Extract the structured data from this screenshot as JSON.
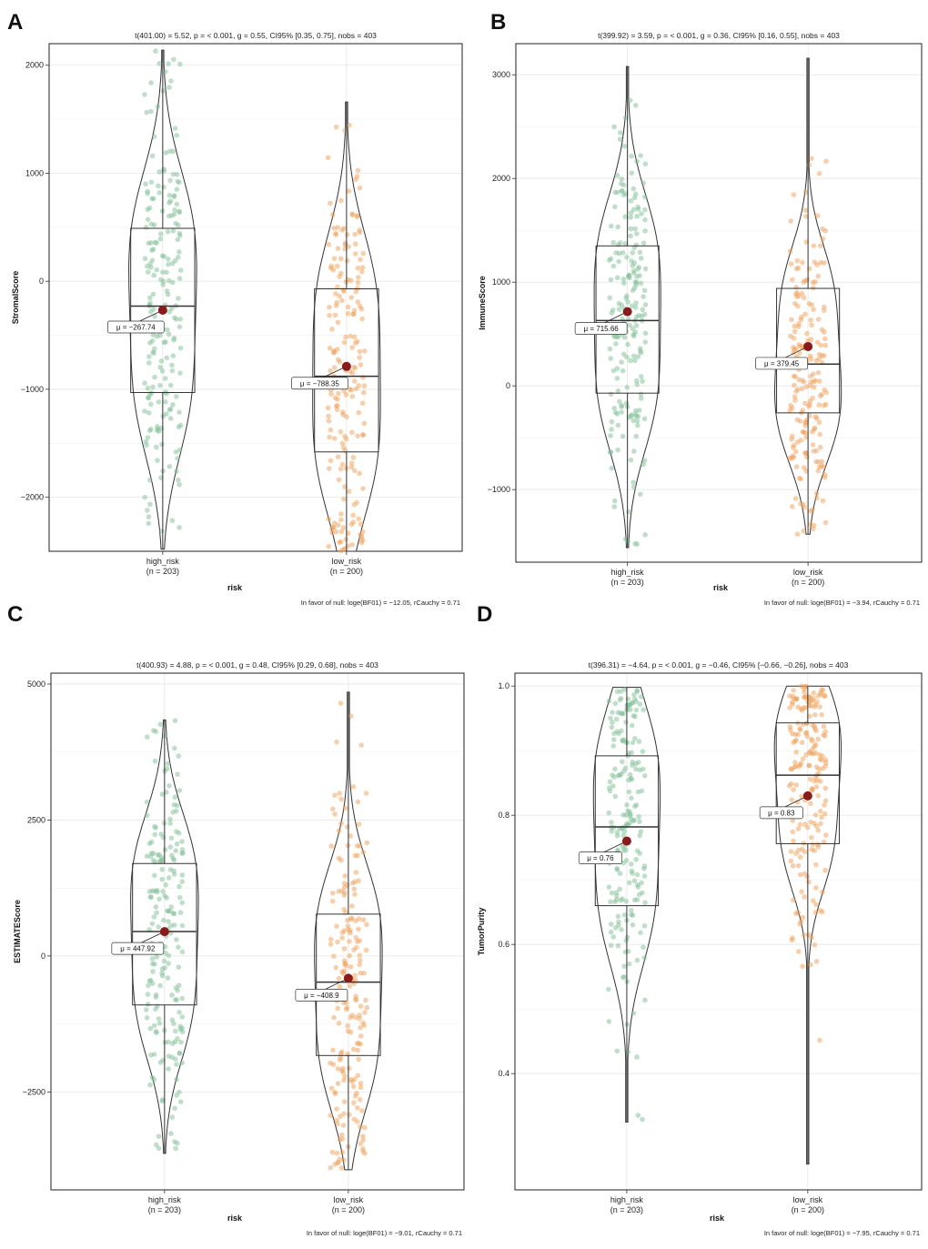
{
  "figure": {
    "colors": {
      "high_risk": "#7fbf95",
      "low_risk": "#f0a058",
      "mean_dot": "#8b1a1a",
      "outline": "#333333",
      "grid": "#e6e6e6",
      "frame": "#222222"
    }
  },
  "chart_data": [
    {
      "panel_label": "A",
      "type": "violin-box-scatter",
      "title": "t(401.00) = 5.52, p = < 0.001, g = 0.55, CI95% [0.35, 0.75], nobs = 403",
      "xlabel": "risk",
      "ylabel": "StromalScore",
      "ylim": [
        -2500,
        2200
      ],
      "yticks": [
        -2000,
        -1000,
        0,
        1000,
        2000
      ],
      "ytick_labels": [
        "−2000",
        "−1000",
        "0",
        "1000",
        "2000"
      ],
      "footer": "In favor of null: loge(BF01) = −12.05, rCauchy = 0.71",
      "categories": [
        "high_risk",
        "low_risk"
      ],
      "category_labels": [
        "high_risk",
        "low_risk"
      ],
      "counts": [
        "(n = 203)",
        "(n = 200)"
      ],
      "groups": [
        {
          "name": "high_risk",
          "n": 203,
          "min": -2480,
          "q1": -1030,
          "median": -230,
          "q3": 490,
          "max": 2140,
          "mean": -267.74,
          "mean_label": "μ = −267.74"
        },
        {
          "name": "low_risk",
          "n": 200,
          "min": -2500,
          "q1": -1580,
          "median": -880,
          "q3": -70,
          "max": 1660,
          "mean": -788.35,
          "mean_label": "μ = −788.35"
        }
      ]
    },
    {
      "panel_label": "B",
      "type": "violin-box-scatter",
      "title": "t(399.92) = 3.59, p = < 0.001, g = 0.36, CI95% [0.16, 0.55], nobs = 403",
      "xlabel": "risk",
      "ylabel": "ImmuneScore",
      "ylim": [
        -1700,
        3300
      ],
      "yticks": [
        -1000,
        0,
        1000,
        2000,
        3000
      ],
      "ytick_labels": [
        "−1000",
        "0",
        "1000",
        "2000",
        "3000"
      ],
      "footer": "In favor of null: loge(BF01) = −3.94, rCauchy = 0.71",
      "categories": [
        "high_risk",
        "low_risk"
      ],
      "category_labels": [
        "high_risk",
        "low_risk"
      ],
      "counts": [
        "(n = 203)",
        "(n = 200)"
      ],
      "groups": [
        {
          "name": "high_risk",
          "n": 203,
          "min": -1560,
          "q1": -70,
          "median": 630,
          "q3": 1350,
          "max": 3080,
          "mean": 715.66,
          "mean_label": "μ = 715.66"
        },
        {
          "name": "low_risk",
          "n": 200,
          "min": -1430,
          "q1": -260,
          "median": 210,
          "q3": 940,
          "max": 3160,
          "mean": 379.45,
          "mean_label": "μ = 379.45"
        }
      ]
    },
    {
      "panel_label": "C",
      "type": "violin-box-scatter",
      "title": "t(400.93) = 4.88, p = < 0.001, g = 0.48, CI95% [0.29, 0.68], nobs = 403",
      "xlabel": "risk",
      "ylabel": "ESTIMATEScore",
      "ylim": [
        -4300,
        5200
      ],
      "yticks": [
        -2500,
        0,
        2500,
        5000
      ],
      "ytick_labels": [
        "−2500",
        "0",
        "2500",
        "5000"
      ],
      "footer": "In favor of null: loge(BF01) = −9.01, rCauchy = 0.71",
      "categories": [
        "high_risk",
        "low_risk"
      ],
      "category_labels": [
        "high_risk",
        "low_risk"
      ],
      "counts": [
        "(n = 203)",
        "(n = 200)"
      ],
      "groups": [
        {
          "name": "high_risk",
          "n": 203,
          "min": -3630,
          "q1": -900,
          "median": 450,
          "q3": 1700,
          "max": 4340,
          "mean": 447.92,
          "mean_label": "μ = 447.92"
        },
        {
          "name": "low_risk",
          "n": 200,
          "min": -3930,
          "q1": -1830,
          "median": -480,
          "q3": 770,
          "max": 4850,
          "mean": -408.9,
          "mean_label": "μ = −408.9"
        }
      ]
    },
    {
      "panel_label": "D",
      "type": "violin-box-scatter",
      "title": "t(396.31) = −4.64, p = < 0.001, g = −0.46, CI95% [−0.66, −0.26], nobs = 403",
      "xlabel": "risk",
      "ylabel": "TumorPurity",
      "ylim": [
        0.22,
        1.02
      ],
      "yticks": [
        0.4,
        0.6,
        0.8,
        1.0
      ],
      "ytick_labels": [
        "0.4",
        "0.6",
        "0.8",
        "1.0"
      ],
      "footer": "In favor of null: loge(BF01) = −7.95, rCauchy = 0.71",
      "categories": [
        "high_risk",
        "low_risk"
      ],
      "category_labels": [
        "high_risk",
        "low_risk"
      ],
      "counts": [
        "(n = 203)",
        "(n = 200)"
      ],
      "groups": [
        {
          "name": "high_risk",
          "n": 203,
          "min": 0.325,
          "q1": 0.66,
          "median": 0.782,
          "q3": 0.892,
          "max": 0.998,
          "mean": 0.76,
          "mean_label": "μ = 0.76"
        },
        {
          "name": "low_risk",
          "n": 200,
          "min": 0.26,
          "q1": 0.756,
          "median": 0.862,
          "q3": 0.943,
          "max": 1.0,
          "mean": 0.83,
          "mean_label": "μ = 0.83"
        }
      ]
    }
  ]
}
